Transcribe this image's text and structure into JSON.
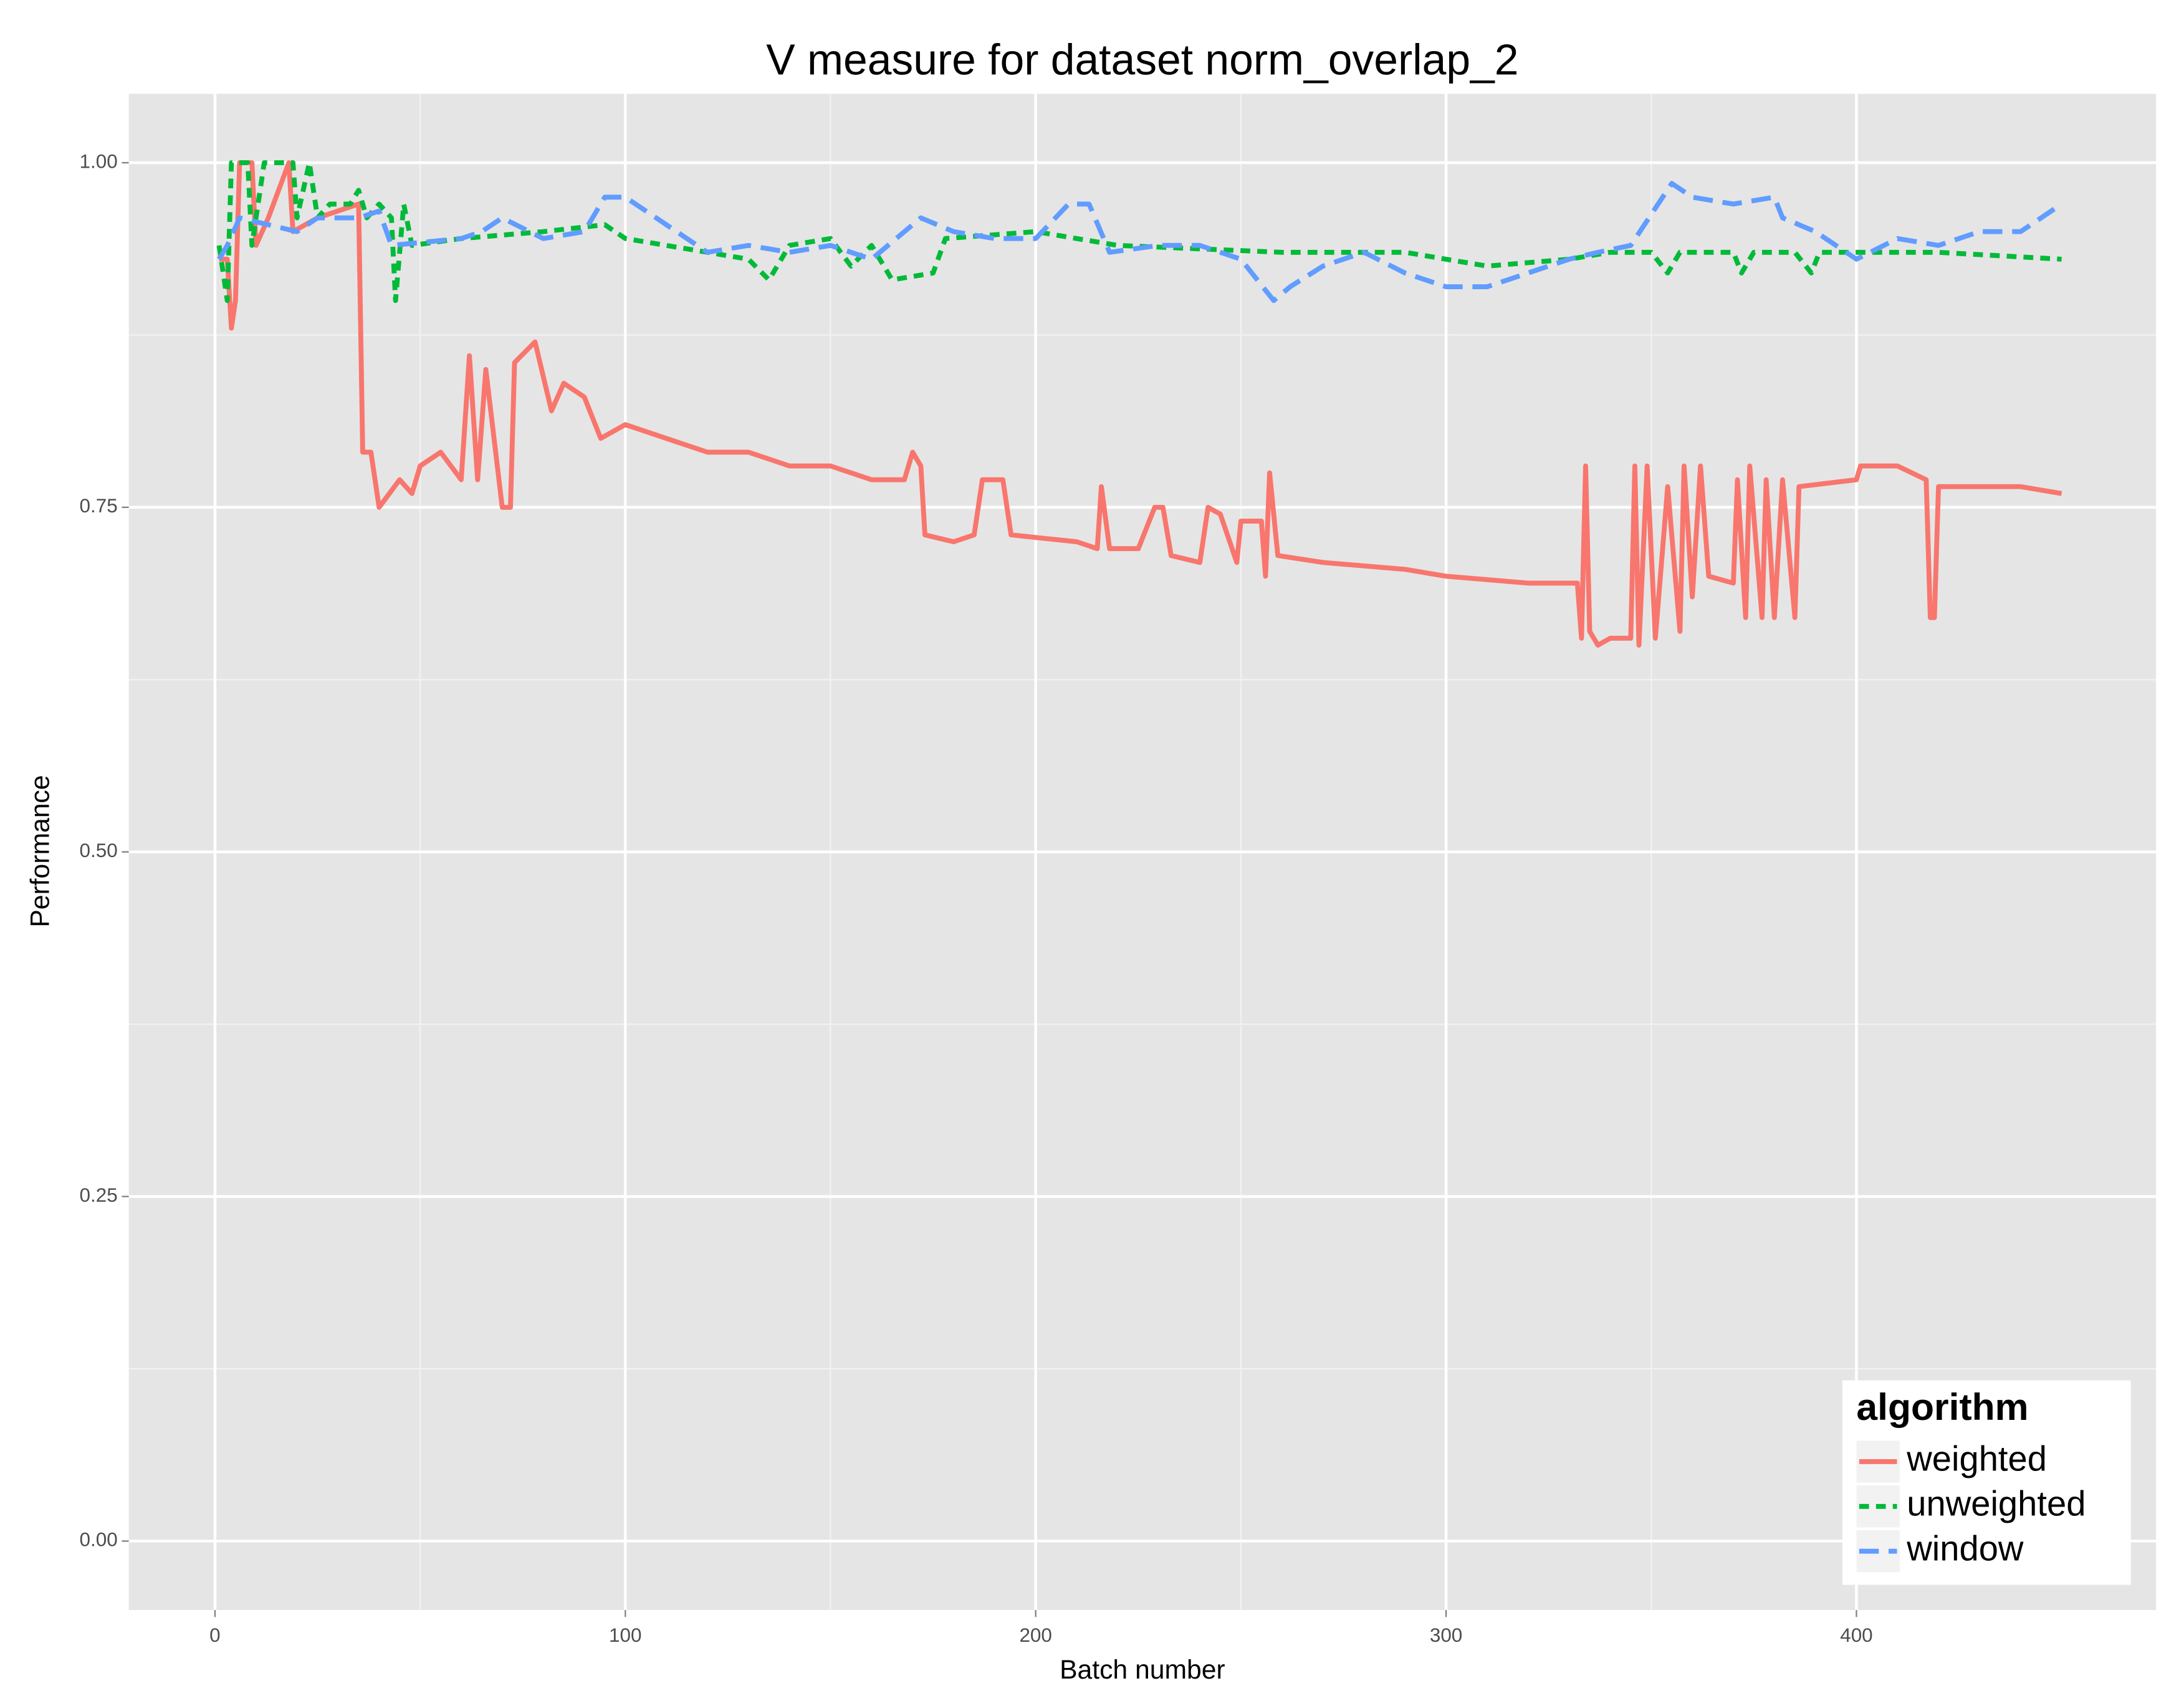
{
  "chart_data": {
    "type": "line",
    "title": "V measure for dataset norm_overlap_2",
    "x_label": "Batch number",
    "y_label": "Performance",
    "xlim": [
      -21,
      473
    ],
    "ylim": [
      -0.05,
      1.05
    ],
    "xticks": [
      0,
      100,
      200,
      300,
      400
    ],
    "yticks": [
      {
        "value": 0,
        "label": "0.00"
      },
      {
        "value": 0.25,
        "label": "0.25"
      },
      {
        "value": 0.5,
        "label": "0.50"
      },
      {
        "value": 0.75,
        "label": "0.75"
      },
      {
        "value": 1,
        "label": "1.00"
      }
    ],
    "grid": true,
    "legend_title": "algorithm",
    "legend_position": "bottom-right",
    "series": [
      {
        "name": "weighted",
        "color": "#F8766D",
        "dash": "solid",
        "x": [
          1,
          3,
          4,
          5,
          6,
          9,
          10,
          13,
          18,
          19,
          25,
          35,
          36,
          38,
          40,
          45,
          48,
          50,
          55,
          60,
          62,
          64,
          66,
          70,
          72,
          73,
          78,
          82,
          85,
          90,
          94,
          100,
          110,
          120,
          130,
          140,
          150,
          160,
          168,
          170,
          172,
          173,
          180,
          185,
          187,
          192,
          194,
          210,
          215,
          216,
          218,
          225,
          229,
          231,
          233,
          240,
          242,
          245,
          249,
          250,
          255,
          256,
          257,
          259,
          270,
          290,
          300,
          320,
          332,
          333,
          334,
          335,
          337,
          340,
          345,
          346,
          347,
          349,
          351,
          354,
          357,
          358,
          360,
          362,
          364,
          370,
          371,
          373,
          374,
          377,
          378,
          380,
          382,
          385,
          386,
          400,
          401,
          410,
          417,
          418,
          419,
          420,
          430,
          440,
          450
        ],
        "values": [
          0.93,
          0.93,
          0.88,
          0.9,
          1.0,
          1.0,
          0.94,
          0.96,
          1.0,
          0.95,
          0.96,
          0.97,
          0.79,
          0.79,
          0.75,
          0.77,
          0.76,
          0.78,
          0.79,
          0.77,
          0.86,
          0.77,
          0.85,
          0.75,
          0.75,
          0.855,
          0.87,
          0.82,
          0.84,
          0.83,
          0.8,
          0.81,
          0.8,
          0.79,
          0.79,
          0.78,
          0.78,
          0.77,
          0.77,
          0.79,
          0.78,
          0.73,
          0.725,
          0.73,
          0.77,
          0.77,
          0.73,
          0.725,
          0.72,
          0.765,
          0.72,
          0.72,
          0.75,
          0.75,
          0.715,
          0.71,
          0.75,
          0.745,
          0.71,
          0.74,
          0.74,
          0.7,
          0.775,
          0.715,
          0.71,
          0.705,
          0.7,
          0.695,
          0.695,
          0.655,
          0.78,
          0.66,
          0.65,
          0.655,
          0.655,
          0.78,
          0.65,
          0.78,
          0.655,
          0.765,
          0.66,
          0.78,
          0.685,
          0.78,
          0.7,
          0.695,
          0.77,
          0.67,
          0.78,
          0.67,
          0.77,
          0.67,
          0.77,
          0.67,
          0.765,
          0.77,
          0.78,
          0.78,
          0.77,
          0.67,
          0.67,
          0.765,
          0.765,
          0.765,
          0.76
        ]
      },
      {
        "name": "unweighted",
        "color": "#00BA38",
        "dash": "dotted",
        "x": [
          1,
          3,
          4,
          8,
          9,
          12,
          19,
          20,
          23,
          25,
          28,
          33,
          35,
          37,
          40,
          43,
          44,
          46,
          48,
          60,
          80,
          95,
          100,
          110,
          120,
          130,
          135,
          140,
          150,
          155,
          160,
          165,
          175,
          178,
          200,
          220,
          260,
          290,
          310,
          330,
          340,
          350,
          354,
          357,
          370,
          372,
          375,
          385,
          389,
          391,
          420,
          450
        ],
        "values": [
          0.94,
          0.9,
          1.0,
          1.0,
          0.94,
          1.0,
          1.0,
          0.96,
          1.0,
          0.96,
          0.97,
          0.97,
          0.98,
          0.96,
          0.97,
          0.96,
          0.9,
          0.97,
          0.94,
          0.945,
          0.95,
          0.955,
          0.945,
          0.94,
          0.935,
          0.93,
          0.915,
          0.94,
          0.945,
          0.925,
          0.94,
          0.915,
          0.92,
          0.945,
          0.95,
          0.94,
          0.935,
          0.935,
          0.925,
          0.93,
          0.935,
          0.935,
          0.92,
          0.935,
          0.935,
          0.92,
          0.935,
          0.935,
          0.92,
          0.935,
          0.935,
          0.93
        ]
      },
      {
        "name": "window",
        "color": "#619CFF",
        "dash": "dashed",
        "x": [
          1,
          3,
          6,
          20,
          25,
          35,
          40,
          43,
          60,
          65,
          70,
          80,
          90,
          95,
          100,
          105,
          110,
          120,
          130,
          140,
          150,
          160,
          172,
          180,
          190,
          200,
          208,
          213,
          218,
          230,
          240,
          250,
          258,
          262,
          270,
          280,
          290,
          300,
          310,
          320,
          330,
          337,
          345,
          355,
          360,
          370,
          380,
          382,
          390,
          400,
          410,
          420,
          430,
          440,
          450
        ],
        "values": [
          0.93,
          0.94,
          0.96,
          0.95,
          0.96,
          0.96,
          0.965,
          0.94,
          0.945,
          0.95,
          0.96,
          0.945,
          0.95,
          0.975,
          0.975,
          0.965,
          0.955,
          0.935,
          0.94,
          0.935,
          0.94,
          0.93,
          0.96,
          0.95,
          0.945,
          0.945,
          0.97,
          0.97,
          0.935,
          0.94,
          0.94,
          0.93,
          0.9,
          0.91,
          0.925,
          0.935,
          0.92,
          0.91,
          0.91,
          0.92,
          0.93,
          0.935,
          0.94,
          0.985,
          0.975,
          0.97,
          0.975,
          0.96,
          0.95,
          0.93,
          0.945,
          0.94,
          0.95,
          0.95,
          0.97
        ]
      }
    ]
  }
}
